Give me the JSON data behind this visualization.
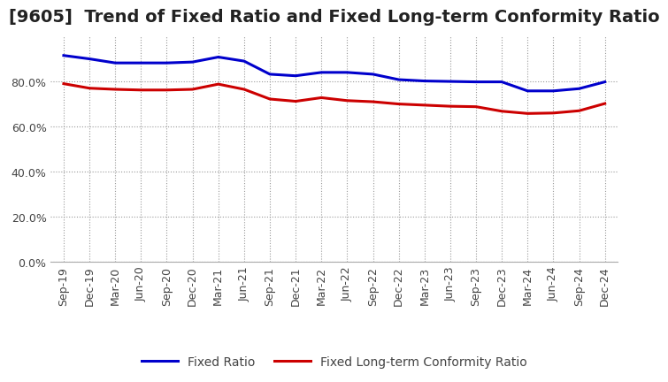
{
  "title": "[9605]  Trend of Fixed Ratio and Fixed Long-term Conformity Ratio",
  "x_labels": [
    "Sep-19",
    "Dec-19",
    "Mar-20",
    "Jun-20",
    "Sep-20",
    "Dec-20",
    "Mar-21",
    "Jun-21",
    "Sep-21",
    "Dec-21",
    "Mar-22",
    "Jun-22",
    "Sep-22",
    "Dec-22",
    "Mar-23",
    "Jun-23",
    "Sep-23",
    "Dec-23",
    "Mar-24",
    "Jun-24",
    "Sep-24",
    "Dec-24"
  ],
  "fixed_ratio": [
    0.915,
    0.9,
    0.882,
    0.882,
    0.882,
    0.886,
    0.908,
    0.89,
    0.832,
    0.825,
    0.84,
    0.84,
    0.832,
    0.808,
    0.802,
    0.8,
    0.798,
    0.798,
    0.758,
    0.758,
    0.768,
    0.798
  ],
  "fixed_lt_ratio": [
    0.79,
    0.77,
    0.765,
    0.762,
    0.762,
    0.765,
    0.788,
    0.765,
    0.722,
    0.712,
    0.728,
    0.715,
    0.71,
    0.7,
    0.695,
    0.69,
    0.688,
    0.668,
    0.658,
    0.66,
    0.67,
    0.702
  ],
  "fixed_ratio_color": "#0000cc",
  "fixed_lt_ratio_color": "#cc0000",
  "ylim": [
    0.0,
    1.0
  ],
  "yticks": [
    0.0,
    0.2,
    0.4,
    0.6,
    0.8
  ],
  "grid_color": "#999999",
  "bg_color": "#ffffff",
  "legend_fixed": "Fixed Ratio",
  "legend_fixed_lt": "Fixed Long-term Conformity Ratio",
  "title_fontsize": 14,
  "tick_fontsize": 9,
  "legend_fontsize": 10,
  "line_width": 2.2
}
